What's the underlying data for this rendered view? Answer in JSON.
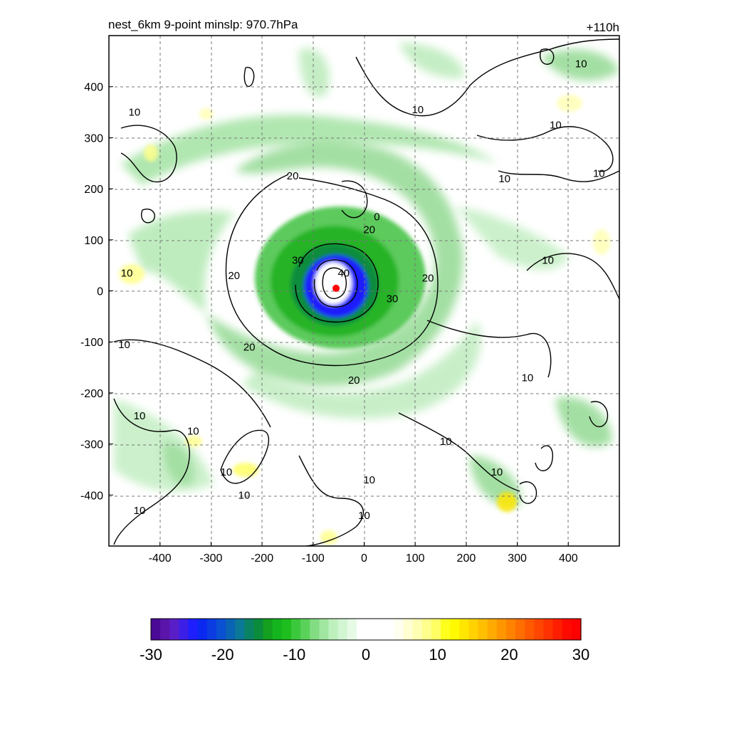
{
  "chart_data": {
    "type": "heatmap",
    "title": "nest_6km  9-point minslp: 970.7hPa",
    "time_label": "+110h",
    "xlim": [
      -500,
      500
    ],
    "ylim": [
      -500,
      500
    ],
    "x_ticks": [
      -400,
      -300,
      -200,
      -100,
      0,
      100,
      200,
      300,
      400
    ],
    "y_ticks": [
      400,
      300,
      200,
      100,
      0,
      -100,
      -200,
      -300,
      -400
    ],
    "grid": true,
    "center": {
      "x": -55,
      "y": 5,
      "marker_color": "#ff0000"
    },
    "contour_levels": [
      10,
      20,
      30,
      40
    ],
    "contour_labels": [
      {
        "text": "10",
        "x": -450,
        "y": 350
      },
      {
        "text": "10",
        "x": 105,
        "y": 355
      },
      {
        "text": "10",
        "x": 375,
        "y": 325
      },
      {
        "text": "10",
        "x": 275,
        "y": 220
      },
      {
        "text": "10",
        "x": 460,
        "y": 230
      },
      {
        "text": "10",
        "x": 425,
        "y": 445
      },
      {
        "text": "20",
        "x": -140,
        "y": 225
      },
      {
        "text": "20",
        "x": 10,
        "y": 120
      },
      {
        "text": "0",
        "x": 25,
        "y": 145
      },
      {
        "text": "30",
        "x": -130,
        "y": 60
      },
      {
        "text": "40",
        "x": -40,
        "y": 35
      },
      {
        "text": "20",
        "x": -255,
        "y": 30
      },
      {
        "text": "20",
        "x": 125,
        "y": 25
      },
      {
        "text": "30",
        "x": 55,
        "y": -15
      },
      {
        "text": "10",
        "x": -465,
        "y": 35
      },
      {
        "text": "10",
        "x": 360,
        "y": 60
      },
      {
        "text": "20",
        "x": -225,
        "y": -110
      },
      {
        "text": "20",
        "x": -20,
        "y": -175
      },
      {
        "text": "10",
        "x": -470,
        "y": -105
      },
      {
        "text": "10",
        "x": 320,
        "y": -170
      },
      {
        "text": "10",
        "x": -440,
        "y": -245
      },
      {
        "text": "10",
        "x": -335,
        "y": -275
      },
      {
        "text": "10",
        "x": 160,
        "y": -295
      },
      {
        "text": "10",
        "x": 260,
        "y": -355
      },
      {
        "text": "10",
        "x": -270,
        "y": -355
      },
      {
        "text": "10",
        "x": 10,
        "y": -370
      },
      {
        "text": "10",
        "x": -235,
        "y": -400
      },
      {
        "text": "10",
        "x": -440,
        "y": -430
      },
      {
        "text": "10",
        "x": 0,
        "y": -440
      }
    ],
    "colorbar": {
      "min": -30,
      "max": 30,
      "tick_values": [
        -30,
        -20,
        -10,
        0,
        10,
        20,
        30
      ],
      "tick_labels": [
        "-30",
        "-20",
        "-10",
        "0",
        "10",
        "20",
        "30"
      ],
      "colors": [
        "#4b0a96",
        "#5a14aa",
        "#5a1ec8",
        "#3c1ee6",
        "#1e1eff",
        "#0a28f0",
        "#0a3ce1",
        "#0a50d2",
        "#0a64b4",
        "#0a7896",
        "#0a8264",
        "#0a8c3c",
        "#14a01e",
        "#14b41e",
        "#1ebe1e",
        "#3cc83c",
        "#5ad25a",
        "#82dc82",
        "#a0e6a0",
        "#bef0be",
        "#d2f5d2",
        "#e6fae6",
        "#ffffff",
        "#ffffff",
        "#ffffff",
        "#ffffff",
        "#fffff0",
        "#ffffd2",
        "#ffffb4",
        "#ffff8c",
        "#ffff64",
        "#ffff1e",
        "#fffa00",
        "#ffe600",
        "#ffd200",
        "#ffbe00",
        "#ffaa00",
        "#ff9600",
        "#ff8200",
        "#ff6e00",
        "#ff5a00",
        "#ff4600",
        "#ff3200",
        "#ff1e00",
        "#ff0a00",
        "#ff0000"
      ]
    }
  }
}
